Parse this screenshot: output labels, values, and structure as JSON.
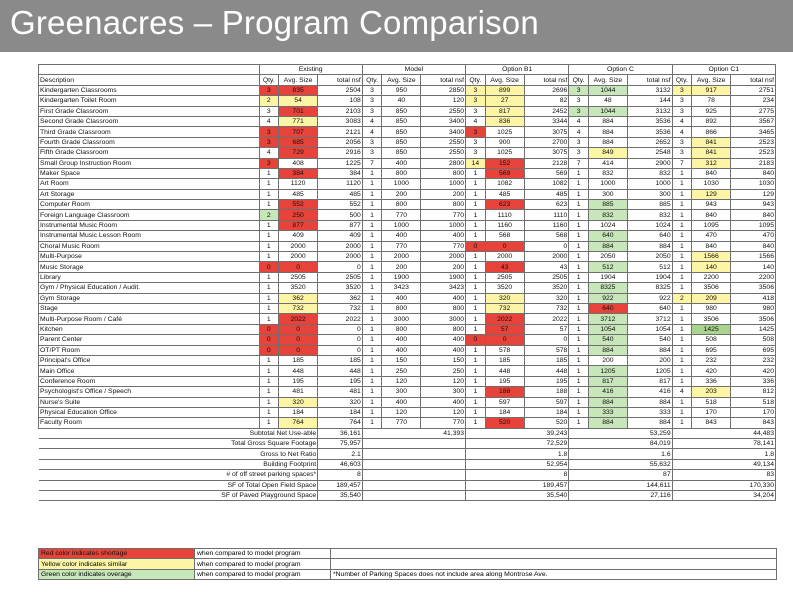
{
  "title": "Greenacres – Program Comparison",
  "groups": [
    "Existing",
    "Model",
    "Option B1",
    "Option C",
    "Option C1"
  ],
  "col_headers": {
    "description": "Description",
    "qty": "Qty.",
    "avg": "Avg. Size",
    "total": "total nsf"
  },
  "colors": {
    "red": "#e8433a",
    "yellow": "#fdf5a6",
    "green": "#c7e6b9",
    "dark_green": "#a8d48e"
  },
  "rows": [
    {
      "d": "Kindergarten Classrooms",
      "c": [
        [
          "3",
          "835",
          "2504",
          "3r,4r"
        ],
        [
          "3",
          "950",
          "2850",
          ""
        ],
        [
          "3",
          "899",
          "2696",
          "3y,4y"
        ],
        [
          "3",
          "1044",
          "3132",
          "3g,4g"
        ],
        [
          "3",
          "917",
          "2751",
          "3y,4y"
        ]
      ]
    },
    {
      "d": "Kindergarten Toilet Room",
      "c": [
        [
          "2",
          "54",
          "108",
          "3y,4y"
        ],
        [
          "3",
          "40",
          "120",
          ""
        ],
        [
          "3",
          "27",
          "82",
          "3y,4y"
        ],
        [
          "3",
          "48",
          "144",
          ""
        ],
        [
          "3",
          "78",
          "234",
          ""
        ]
      ]
    },
    {
      "d": "First Grade Classroom",
      "c": [
        [
          "3",
          "701",
          "2103",
          "4r"
        ],
        [
          "3",
          "850",
          "2550",
          ""
        ],
        [
          "3",
          "817",
          "2452",
          "4y"
        ],
        [
          "3",
          "1044",
          "3132",
          "3g,4g"
        ],
        [
          "3",
          "925",
          "2775",
          ""
        ]
      ]
    },
    {
      "d": "Second Grade Classroom",
      "c": [
        [
          "4",
          "771",
          "3083",
          "4y"
        ],
        [
          "4",
          "850",
          "3400",
          ""
        ],
        [
          "4",
          "836",
          "3344",
          "4y"
        ],
        [
          "4",
          "884",
          "3536",
          ""
        ],
        [
          "4",
          "892",
          "3567",
          ""
        ]
      ]
    },
    {
      "d": "Third Grade Classroom",
      "c": [
        [
          "3",
          "707",
          "2121",
          "3r,4r"
        ],
        [
          "4",
          "850",
          "3400",
          ""
        ],
        [
          "3",
          "1025",
          "3075",
          "3r"
        ],
        [
          "4",
          "884",
          "3536",
          ""
        ],
        [
          "4",
          "866",
          "3465",
          ""
        ]
      ]
    },
    {
      "d": "Fourth Grade Classroom",
      "c": [
        [
          "3",
          "685",
          "2056",
          "3r,4r"
        ],
        [
          "3",
          "850",
          "2550",
          ""
        ],
        [
          "3",
          "900",
          "2700",
          ""
        ],
        [
          "3",
          "884",
          "2652",
          ""
        ],
        [
          "3",
          "841",
          "2523",
          "4y"
        ]
      ]
    },
    {
      "d": "Fifth Grade Classroom",
      "c": [
        [
          "4",
          "729",
          "2916",
          "4r"
        ],
        [
          "3",
          "850",
          "2550",
          ""
        ],
        [
          "3",
          "1025",
          "3075",
          ""
        ],
        [
          "3",
          "849",
          "2548",
          "4y"
        ],
        [
          "3",
          "841",
          "2523",
          "4y"
        ]
      ]
    },
    {
      "d": "Small Group Instruction Room",
      "c": [
        [
          "3",
          "408",
          "1225",
          "3r"
        ],
        [
          "7",
          "400",
          "2800",
          ""
        ],
        [
          "14",
          "152",
          "2128",
          "3y,4r"
        ],
        [
          "7",
          "414",
          "2900",
          ""
        ],
        [
          "7",
          "312",
          "2183",
          "4y"
        ]
      ]
    },
    {
      "d": "Maker Space",
      "c": [
        [
          "1",
          "384",
          "384",
          "4r"
        ],
        [
          "1",
          "800",
          "800",
          ""
        ],
        [
          "1",
          "569",
          "569",
          "4r"
        ],
        [
          "1",
          "832",
          "832",
          ""
        ],
        [
          "1",
          "840",
          "840",
          ""
        ]
      ]
    },
    {
      "d": "Art Room",
      "c": [
        [
          "1",
          "1120",
          "1120",
          ""
        ],
        [
          "1",
          "1000",
          "1000",
          ""
        ],
        [
          "1",
          "1082",
          "1082",
          ""
        ],
        [
          "1",
          "1000",
          "1000",
          ""
        ],
        [
          "1",
          "1030",
          "1030",
          ""
        ]
      ]
    },
    {
      "d": "Art Storage",
      "c": [
        [
          "1",
          "485",
          "485",
          ""
        ],
        [
          "1",
          "200",
          "200",
          ""
        ],
        [
          "1",
          "485",
          "485",
          ""
        ],
        [
          "1",
          "300",
          "300",
          ""
        ],
        [
          "1",
          "129",
          "129",
          "4y"
        ]
      ]
    },
    {
      "d": "Computer Room",
      "c": [
        [
          "1",
          "552",
          "552",
          "4r"
        ],
        [
          "1",
          "800",
          "800",
          ""
        ],
        [
          "1",
          "623",
          "623",
          "4r"
        ],
        [
          "1",
          "885",
          "885",
          "4g"
        ],
        [
          "1",
          "943",
          "943",
          ""
        ]
      ]
    },
    {
      "d": "Foreign Language Classroom",
      "c": [
        [
          "2",
          "250",
          "500",
          "3g,4r"
        ],
        [
          "1",
          "770",
          "770",
          ""
        ],
        [
          "1",
          "1110",
          "1110",
          ""
        ],
        [
          "1",
          "832",
          "832",
          "4g"
        ],
        [
          "1",
          "840",
          "840",
          ""
        ]
      ]
    },
    {
      "d": "Instrumental Music Room",
      "c": [
        [
          "1",
          "877",
          "877",
          "4r"
        ],
        [
          "1",
          "1000",
          "1000",
          ""
        ],
        [
          "1",
          "1160",
          "1160",
          ""
        ],
        [
          "1",
          "1024",
          "1024",
          ""
        ],
        [
          "1",
          "1095",
          "1095",
          ""
        ]
      ]
    },
    {
      "d": "Instrumental Music Lesson Room",
      "c": [
        [
          "1",
          "409",
          "409",
          ""
        ],
        [
          "1",
          "400",
          "400",
          ""
        ],
        [
          "1",
          "568",
          "568",
          ""
        ],
        [
          "1",
          "640",
          "640",
          "4g"
        ],
        [
          "1",
          "470",
          "470",
          ""
        ]
      ]
    },
    {
      "d": "Choral Music Room",
      "c": [
        [
          "1",
          "2000",
          "2000",
          ""
        ],
        [
          "1",
          "770",
          "770",
          ""
        ],
        [
          "0",
          "0",
          "0",
          "3r,4r"
        ],
        [
          "1",
          "884",
          "884",
          "4g"
        ],
        [
          "1",
          "840",
          "840",
          ""
        ]
      ]
    },
    {
      "d": "Multi-Purpose",
      "c": [
        [
          "1",
          "2000",
          "2000",
          ""
        ],
        [
          "1",
          "2000",
          "2000",
          ""
        ],
        [
          "1",
          "2000",
          "2000",
          ""
        ],
        [
          "1",
          "2050",
          "2050",
          ""
        ],
        [
          "1",
          "1566",
          "1566",
          "4y"
        ]
      ]
    },
    {
      "d": "Music Storage",
      "c": [
        [
          "0",
          "0",
          "0",
          "3r,4r"
        ],
        [
          "1",
          "200",
          "200",
          ""
        ],
        [
          "1",
          "43",
          "43",
          "4r"
        ],
        [
          "1",
          "512",
          "512",
          "4g"
        ],
        [
          "1",
          "140",
          "140",
          "4y"
        ]
      ]
    },
    {
      "d": "Library",
      "c": [
        [
          "1",
          "2505",
          "2505",
          ""
        ],
        [
          "1",
          "1900",
          "1900",
          ""
        ],
        [
          "1",
          "2505",
          "2505",
          ""
        ],
        [
          "1",
          "1904",
          "1904",
          ""
        ],
        [
          "1",
          "2200",
          "2200",
          ""
        ]
      ]
    },
    {
      "d": "Gym / Physical Education / Audit.",
      "c": [
        [
          "1",
          "3520",
          "3520",
          ""
        ],
        [
          "1",
          "3423",
          "3423",
          ""
        ],
        [
          "1",
          "3520",
          "3520",
          ""
        ],
        [
          "1",
          "8325",
          "8325",
          "4g"
        ],
        [
          "1",
          "3506",
          "3506",
          ""
        ]
      ]
    },
    {
      "d": "Gym Storage",
      "c": [
        [
          "1",
          "362",
          "362",
          "4y"
        ],
        [
          "1",
          "400",
          "400",
          ""
        ],
        [
          "1",
          "320",
          "320",
          "4y"
        ],
        [
          "1",
          "922",
          "922",
          "4g"
        ],
        [
          "2",
          "209",
          "418",
          "3y,4y"
        ]
      ]
    },
    {
      "d": "Stage",
      "c": [
        [
          "1",
          "732",
          "732",
          "4y"
        ],
        [
          "1",
          "800",
          "800",
          ""
        ],
        [
          "1",
          "732",
          "732",
          "4y"
        ],
        [
          "1",
          "640",
          "640",
          "4r"
        ],
        [
          "1",
          "980",
          "980",
          ""
        ]
      ]
    },
    {
      "d": "Multi-Purpose Room / Café",
      "c": [
        [
          "1",
          "2022",
          "2022",
          "4r"
        ],
        [
          "1",
          "3000",
          "3000",
          ""
        ],
        [
          "1",
          "2022",
          "2022",
          "4r"
        ],
        [
          "1",
          "3712",
          "3712",
          "4g"
        ],
        [
          "1",
          "3506",
          "3506",
          ""
        ]
      ]
    },
    {
      "d": "Kitchen",
      "c": [
        [
          "0",
          "0",
          "0",
          "3r,4r"
        ],
        [
          "1",
          "800",
          "800",
          ""
        ],
        [
          "1",
          "57",
          "57",
          "4r"
        ],
        [
          "1",
          "1054",
          "1054",
          "4g"
        ],
        [
          "1",
          "1425",
          "1425",
          "4d"
        ]
      ]
    },
    {
      "d": "Parent Center",
      "c": [
        [
          "0",
          "0",
          "0",
          "3r,4r"
        ],
        [
          "1",
          "400",
          "400",
          ""
        ],
        [
          "0",
          "0",
          "0",
          "3r,4r"
        ],
        [
          "1",
          "540",
          "540",
          "4g"
        ],
        [
          "1",
          "508",
          "508",
          ""
        ]
      ]
    },
    {
      "d": "OT/PT Room",
      "c": [
        [
          "0",
          "0",
          "0",
          "3r,4r"
        ],
        [
          "1",
          "400",
          "400",
          ""
        ],
        [
          "1",
          "578",
          "578",
          ""
        ],
        [
          "1",
          "884",
          "884",
          "4g"
        ],
        [
          "1",
          "695",
          "695",
          ""
        ]
      ]
    },
    {
      "d": "Principal's Office",
      "c": [
        [
          "1",
          "185",
          "185",
          ""
        ],
        [
          "1",
          "150",
          "150",
          ""
        ],
        [
          "1",
          "185",
          "185",
          ""
        ],
        [
          "1",
          "200",
          "200",
          ""
        ],
        [
          "1",
          "232",
          "232",
          ""
        ]
      ]
    },
    {
      "d": "Main Office",
      "c": [
        [
          "1",
          "448",
          "448",
          ""
        ],
        [
          "1",
          "250",
          "250",
          ""
        ],
        [
          "1",
          "448",
          "448",
          ""
        ],
        [
          "1",
          "1205",
          "1205",
          "4g"
        ],
        [
          "1",
          "420",
          "420",
          ""
        ]
      ]
    },
    {
      "d": "Conference Room",
      "c": [
        [
          "1",
          "195",
          "195",
          ""
        ],
        [
          "1",
          "120",
          "120",
          ""
        ],
        [
          "1",
          "195",
          "195",
          ""
        ],
        [
          "1",
          "817",
          "817",
          "4g"
        ],
        [
          "1",
          "336",
          "336",
          ""
        ]
      ]
    },
    {
      "d": "Psychologist's Office / Speech",
      "c": [
        [
          "1",
          "481",
          "481",
          ""
        ],
        [
          "1",
          "300",
          "300",
          ""
        ],
        [
          "1",
          "188",
          "188",
          "4r"
        ],
        [
          "1",
          "416",
          "416",
          "4g"
        ],
        [
          "4",
          "203",
          "812",
          "4y"
        ]
      ]
    },
    {
      "d": "Nurse's Suite",
      "c": [
        [
          "1",
          "320",
          "320",
          "4y"
        ],
        [
          "1",
          "400",
          "400",
          ""
        ],
        [
          "1",
          "597",
          "597",
          ""
        ],
        [
          "1",
          "884",
          "884",
          "4g"
        ],
        [
          "1",
          "518",
          "518",
          ""
        ]
      ]
    },
    {
      "d": "Physical Education Office",
      "c": [
        [
          "1",
          "184",
          "184",
          ""
        ],
        [
          "1",
          "120",
          "120",
          ""
        ],
        [
          "1",
          "184",
          "184",
          ""
        ],
        [
          "1",
          "333",
          "333",
          "4g"
        ],
        [
          "1",
          "170",
          "170",
          ""
        ]
      ]
    },
    {
      "d": "Faculty Room",
      "c": [
        [
          "1",
          "764",
          "764",
          "4y"
        ],
        [
          "1",
          "770",
          "770",
          ""
        ],
        [
          "1",
          "520",
          "520",
          "4r"
        ],
        [
          "1",
          "884",
          "884",
          "4g"
        ],
        [
          "1",
          "843",
          "843",
          ""
        ]
      ]
    }
  ],
  "summary": [
    {
      "label": "Subtotal Net Use-able",
      "v": [
        "36,161",
        "41,393",
        "39,243",
        "53,259",
        "44,483"
      ]
    },
    {
      "label": "Total Gross Square Footage",
      "v": [
        "75,957",
        "",
        "72,529",
        "84,019",
        "78,141"
      ]
    },
    {
      "label": "Gross to Net Ratio",
      "v": [
        "2.1",
        "",
        "1.8",
        "1.6",
        "1.8"
      ]
    },
    {
      "label": "Building Footprint",
      "v": [
        "46,603",
        "",
        "52,954",
        "55,632",
        "49,134"
      ]
    },
    {
      "label": "# of off street parking spaces*",
      "v": [
        "8",
        "",
        "8",
        "87",
        "83"
      ]
    },
    {
      "label": "SF of Total Open Field Space",
      "v": [
        "189,457",
        "",
        "189,457",
        "144,611",
        "170,330"
      ]
    },
    {
      "label": "SF of Paved Playground Space",
      "v": [
        "35,540",
        "",
        "35,540",
        "27,116",
        "34,204"
      ]
    }
  ],
  "legend": [
    {
      "swatch": "Red color indicates shortage",
      "text": "when compared to model program"
    },
    {
      "swatch": "Yellow color indicates similar",
      "text": "when compared to model program"
    },
    {
      "swatch": "Green color indicates overage",
      "text": "when compared to model program"
    }
  ],
  "footnote": "*Number of Parking Spaces does not include area along Montrose Ave."
}
